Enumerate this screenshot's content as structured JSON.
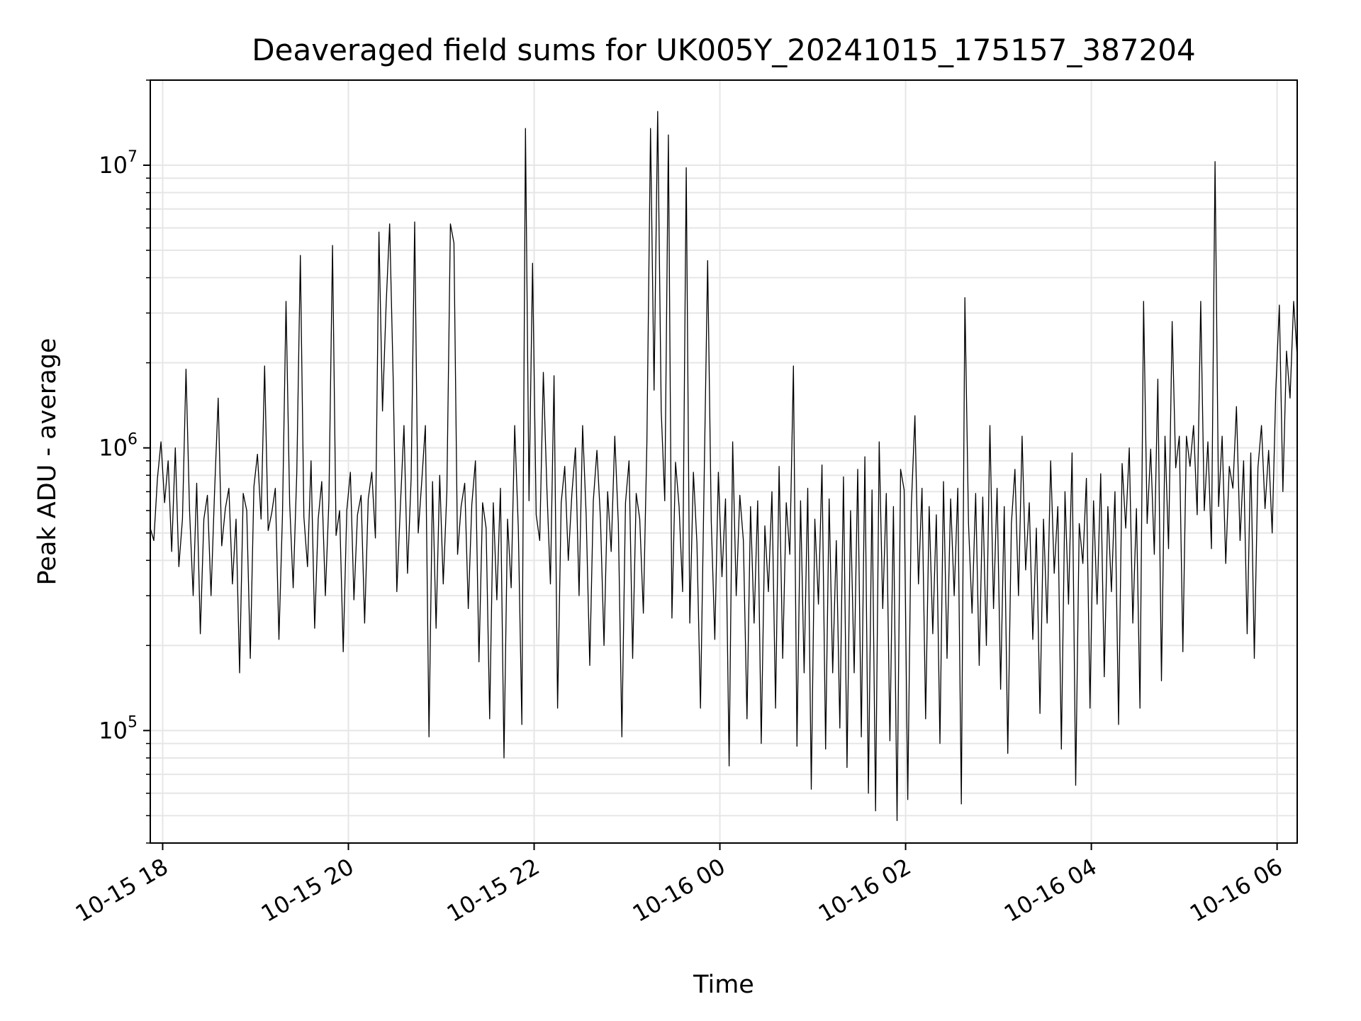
{
  "chart_data": {
    "type": "line",
    "title": "Deaveraged field sums for UK005Y_20241015_175157_387204",
    "xlabel": "Time",
    "ylabel": "Peak ADU - average",
    "yscale": "log",
    "grid": true,
    "ylim": [
      40000,
      20000000
    ],
    "xlim": [
      "2024-10-15 17:52",
      "2024-10-16 06:13"
    ],
    "x_ticks": [
      "10-15 18",
      "10-15 20",
      "10-15 22",
      "10-16 00",
      "10-16 02",
      "10-16 04",
      "10-16 06"
    ],
    "y_ticks": [
      {
        "base": "10",
        "exp": "5"
      },
      {
        "base": "10",
        "exp": "6"
      },
      {
        "base": "10",
        "exp": "7"
      }
    ],
    "line_color": "#000000",
    "series": [
      {
        "x_start": "2024-10-15 17:52",
        "x_end": "2024-10-16 06:13",
        "values": [
          520000,
          470000,
          780000,
          1050000,
          640000,
          900000,
          430000,
          1000000,
          380000,
          560000,
          1900000,
          600000,
          300000,
          750000,
          220000,
          560000,
          680000,
          300000,
          700000,
          1500000,
          450000,
          610000,
          720000,
          330000,
          560000,
          160000,
          690000,
          600000,
          180000,
          730000,
          950000,
          560000,
          1950000,
          510000,
          590000,
          720000,
          210000,
          580000,
          3300000,
          640000,
          320000,
          820000,
          4800000,
          570000,
          380000,
          900000,
          230000,
          560000,
          760000,
          300000,
          650000,
          5200000,
          490000,
          600000,
          190000,
          600000,
          820000,
          290000,
          580000,
          680000,
          240000,
          660000,
          820000,
          480000,
          5800000,
          1350000,
          3200000,
          6200000,
          1700000,
          310000,
          620000,
          1200000,
          360000,
          780000,
          6300000,
          500000,
          770000,
          1200000,
          95000,
          760000,
          230000,
          800000,
          330000,
          700000,
          6200000,
          5300000,
          420000,
          620000,
          750000,
          270000,
          630000,
          900000,
          175000,
          640000,
          520000,
          110000,
          640000,
          290000,
          720000,
          80000,
          560000,
          320000,
          1200000,
          520000,
          105000,
          13500000,
          650000,
          4500000,
          580000,
          470000,
          1850000,
          720000,
          330000,
          1800000,
          120000,
          640000,
          860000,
          400000,
          690000,
          1000000,
          300000,
          1200000,
          580000,
          170000,
          650000,
          980000,
          560000,
          200000,
          700000,
          430000,
          1100000,
          540000,
          95000,
          640000,
          900000,
          180000,
          690000,
          560000,
          260000,
          1050000,
          13500000,
          1600000,
          15500000,
          1350000,
          650000,
          12800000,
          250000,
          890000,
          620000,
          310000,
          9800000,
          240000,
          820000,
          460000,
          120000,
          760000,
          4600000,
          550000,
          210000,
          820000,
          350000,
          660000,
          75000,
          1050000,
          300000,
          680000,
          470000,
          110000,
          620000,
          240000,
          650000,
          90000,
          530000,
          310000,
          700000,
          120000,
          860000,
          180000,
          640000,
          420000,
          1950000,
          88000,
          650000,
          160000,
          720000,
          62000,
          560000,
          280000,
          870000,
          86000,
          660000,
          160000,
          470000,
          102000,
          790000,
          74000,
          600000,
          160000,
          840000,
          95000,
          930000,
          60000,
          710000,
          52000,
          1050000,
          270000,
          690000,
          92000,
          620000,
          48000,
          840000,
          710000,
          57000,
          620000,
          1300000,
          330000,
          720000,
          110000,
          620000,
          220000,
          580000,
          90000,
          760000,
          180000,
          660000,
          300000,
          720000,
          55000,
          3400000,
          540000,
          260000,
          690000,
          170000,
          670000,
          200000,
          1200000,
          270000,
          720000,
          140000,
          620000,
          83000,
          540000,
          840000,
          300000,
          1100000,
          370000,
          640000,
          210000,
          520000,
          115000,
          560000,
          240000,
          900000,
          360000,
          620000,
          86000,
          700000,
          280000,
          960000,
          64000,
          540000,
          390000,
          780000,
          120000,
          650000,
          280000,
          810000,
          155000,
          620000,
          310000,
          700000,
          105000,
          880000,
          520000,
          1000000,
          240000,
          610000,
          120000,
          3300000,
          540000,
          990000,
          420000,
          1750000,
          150000,
          1100000,
          440000,
          2800000,
          850000,
          1100000,
          190000,
          1100000,
          860000,
          1200000,
          580000,
          3300000,
          600000,
          1050000,
          440000,
          10300000,
          620000,
          1100000,
          390000,
          860000,
          720000,
          1400000,
          470000,
          900000,
          220000,
          960000,
          180000,
          850000,
          1200000,
          610000,
          980000,
          500000,
          1600000,
          3200000,
          700000,
          2200000,
          1500000,
          3300000,
          2100000
        ]
      }
    ]
  }
}
